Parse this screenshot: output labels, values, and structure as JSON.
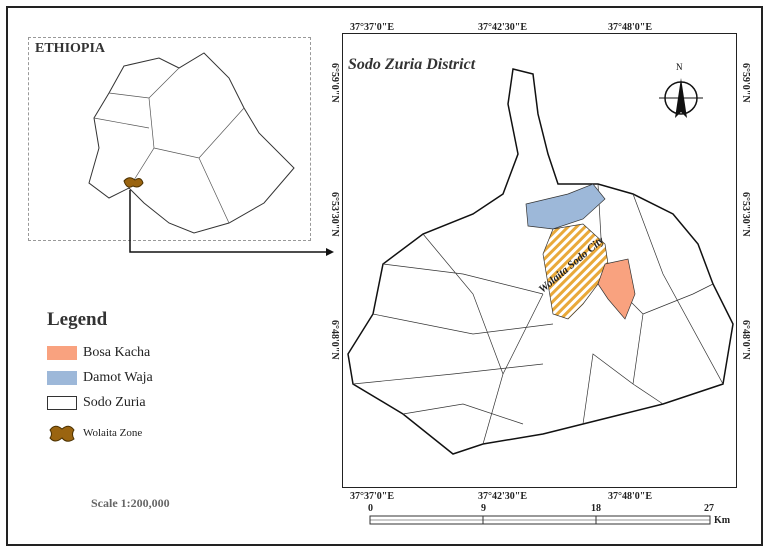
{
  "inset": {
    "title": "ETHIOPIA"
  },
  "main_map": {
    "title": "Sodo Zuria District",
    "city_label": "Wolaita Sodo City",
    "north_label": "N",
    "top_ticks": [
      "37°37'0\"E",
      "37°42'30\"E",
      "37°48'0\"E"
    ],
    "bottom_ticks": [
      "37°37'0\"E",
      "37°42'30\"E",
      "37°48'0\"E"
    ],
    "left_ticks": [
      "6°59'0\"N",
      "6°53'30\"N",
      "6°48'0\"N"
    ],
    "right_ticks": [
      "6°59'0\"N",
      "6°53'30\"N",
      "6°48'0\"N"
    ]
  },
  "legend": {
    "title": "Legend",
    "items": [
      {
        "label": "Bosa Kacha",
        "color": "#f9a27f"
      },
      {
        "label": "Damot Waja",
        "color": "#9db8d9"
      },
      {
        "label": "Sodo Zuria",
        "color": "#ffffff"
      },
      {
        "label": "Wolaita Zone",
        "color": "#9a6410"
      }
    ]
  },
  "scale": {
    "text": "Scale 1:200,000",
    "labels": [
      "0",
      "9",
      "18",
      "27"
    ],
    "unit": "Km"
  },
  "colors": {
    "city": "#e9a93a"
  }
}
